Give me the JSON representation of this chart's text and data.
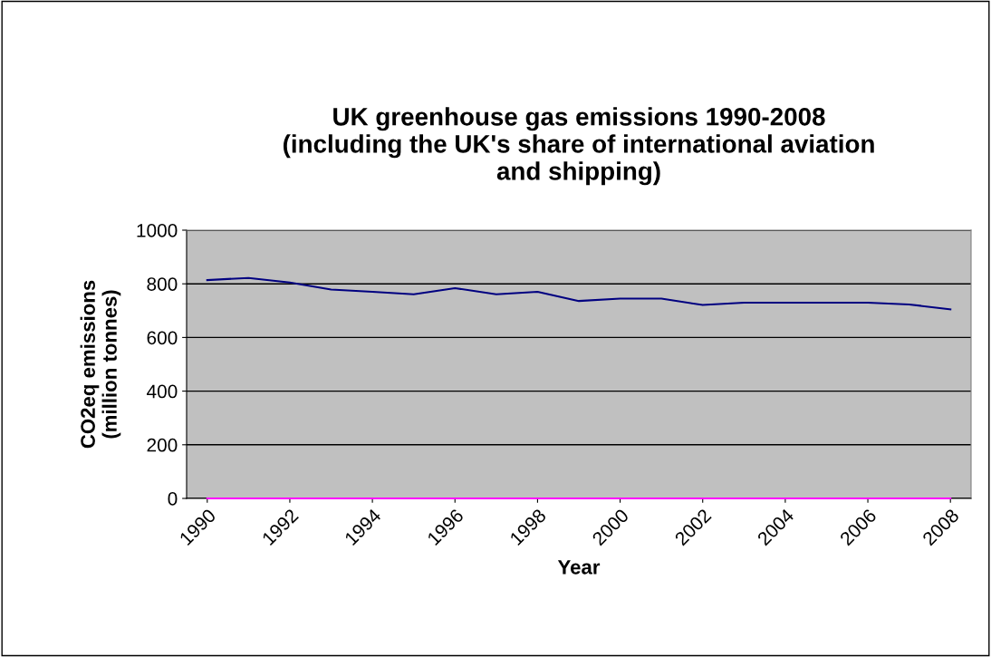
{
  "chart_data": {
    "type": "line",
    "title": "UK greenhouse gas emissions 1990-2008\n(including the UK's share of international aviation\nand shipping)",
    "xlabel": "Year",
    "ylabel": "CO2eq emissions\n(million tonnes)",
    "categories": [
      "1990",
      null,
      "1992",
      null,
      "1994",
      null,
      "1996",
      null,
      "1998",
      null,
      "2000",
      null,
      "2002",
      null,
      "2004",
      null,
      "2006",
      null,
      "2008"
    ],
    "series": [
      {
        "color": "#000080",
        "values": [
          814,
          822,
          805,
          779,
          770,
          761,
          784,
          761,
          770,
          736,
          745,
          745,
          721,
          730,
          730,
          730,
          730,
          723,
          705
        ]
      },
      {
        "color": "#ff00ff",
        "values": [
          0,
          0,
          0,
          0,
          0,
          0,
          0,
          0,
          0,
          0,
          0,
          0,
          0,
          0,
          0,
          0,
          0,
          0,
          0
        ]
      }
    ],
    "ylim": [
      0,
      1000
    ],
    "yticks": [
      0,
      200,
      400,
      600,
      800,
      1000
    ],
    "grid": "y",
    "legend": false,
    "marker": "none",
    "line_style": "solid"
  }
}
